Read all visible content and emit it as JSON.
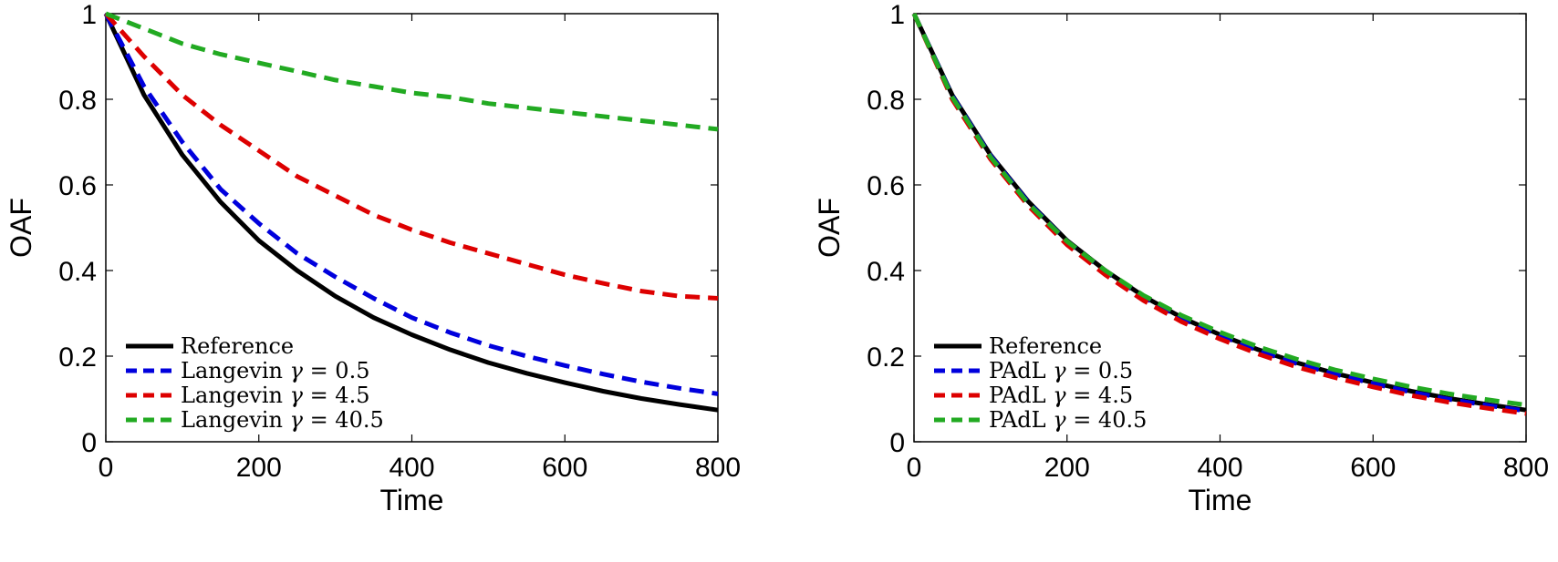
{
  "chart_data": [
    {
      "type": "line",
      "panel": "left",
      "xlabel": "Time",
      "ylabel": "OAF",
      "xlim": [
        0,
        800
      ],
      "ylim": [
        0,
        1
      ],
      "xticks": [
        "0",
        "200",
        "400",
        "600",
        "800"
      ],
      "yticks": [
        "0",
        "0.2",
        "0.4",
        "0.6",
        "0.8",
        "1"
      ],
      "grid": false,
      "legend_position": "bottom-left",
      "x": [
        0,
        50,
        100,
        150,
        200,
        250,
        300,
        350,
        400,
        450,
        500,
        550,
        600,
        650,
        700,
        750,
        800
      ],
      "series": [
        {
          "name": "Reference",
          "color": "#000000",
          "style": "solid",
          "values": [
            1.0,
            0.81,
            0.67,
            0.56,
            0.47,
            0.4,
            0.34,
            0.29,
            0.25,
            0.215,
            0.185,
            0.16,
            0.138,
            0.118,
            0.101,
            0.087,
            0.074
          ]
        },
        {
          "name": "Langevin γ = 0.5",
          "color": "#0000dd",
          "style": "dashed",
          "values": [
            1.0,
            0.83,
            0.7,
            0.59,
            0.51,
            0.44,
            0.385,
            0.335,
            0.29,
            0.255,
            0.225,
            0.2,
            0.178,
            0.158,
            0.14,
            0.125,
            0.112
          ]
        },
        {
          "name": "Langevin γ = 4.5",
          "color": "#dd0000",
          "style": "dashed",
          "values": [
            1.0,
            0.9,
            0.81,
            0.74,
            0.68,
            0.62,
            0.575,
            0.53,
            0.495,
            0.465,
            0.44,
            0.415,
            0.39,
            0.37,
            0.352,
            0.34,
            0.335
          ]
        },
        {
          "name": "Langevin γ = 40.5",
          "color": "#22aa22",
          "style": "dashed",
          "values": [
            1.0,
            0.965,
            0.93,
            0.905,
            0.885,
            0.865,
            0.845,
            0.83,
            0.815,
            0.805,
            0.79,
            0.78,
            0.77,
            0.76,
            0.75,
            0.74,
            0.73
          ]
        }
      ]
    },
    {
      "type": "line",
      "panel": "right",
      "xlabel": "Time",
      "ylabel": "OAF",
      "xlim": [
        0,
        800
      ],
      "ylim": [
        0,
        1
      ],
      "xticks": [
        "0",
        "200",
        "400",
        "600",
        "800"
      ],
      "yticks": [
        "0",
        "0.2",
        "0.4",
        "0.6",
        "0.8",
        "1"
      ],
      "grid": false,
      "legend_position": "bottom-left",
      "x": [
        0,
        50,
        100,
        150,
        200,
        250,
        300,
        350,
        400,
        450,
        500,
        550,
        600,
        650,
        700,
        750,
        800
      ],
      "series": [
        {
          "name": "Reference",
          "color": "#000000",
          "style": "solid",
          "values": [
            1.0,
            0.81,
            0.67,
            0.56,
            0.47,
            0.4,
            0.34,
            0.29,
            0.25,
            0.215,
            0.185,
            0.16,
            0.138,
            0.118,
            0.101,
            0.087,
            0.074
          ]
        },
        {
          "name": "PAdL γ = 0.5",
          "color": "#0000dd",
          "style": "dashed",
          "values": [
            1.0,
            0.808,
            0.668,
            0.558,
            0.468,
            0.398,
            0.338,
            0.288,
            0.248,
            0.213,
            0.183,
            0.158,
            0.136,
            0.116,
            0.099,
            0.085,
            0.072
          ]
        },
        {
          "name": "PAdL γ = 4.5",
          "color": "#dd0000",
          "style": "dashed",
          "values": [
            1.0,
            0.8,
            0.66,
            0.55,
            0.46,
            0.39,
            0.33,
            0.28,
            0.24,
            0.205,
            0.175,
            0.15,
            0.128,
            0.108,
            0.092,
            0.078,
            0.066
          ]
        },
        {
          "name": "PAdL γ = 40.5",
          "color": "#22aa22",
          "style": "dashed",
          "values": [
            1.0,
            0.805,
            0.665,
            0.555,
            0.468,
            0.4,
            0.342,
            0.295,
            0.256,
            0.222,
            0.193,
            0.168,
            0.147,
            0.128,
            0.112,
            0.098,
            0.086
          ]
        }
      ]
    }
  ]
}
